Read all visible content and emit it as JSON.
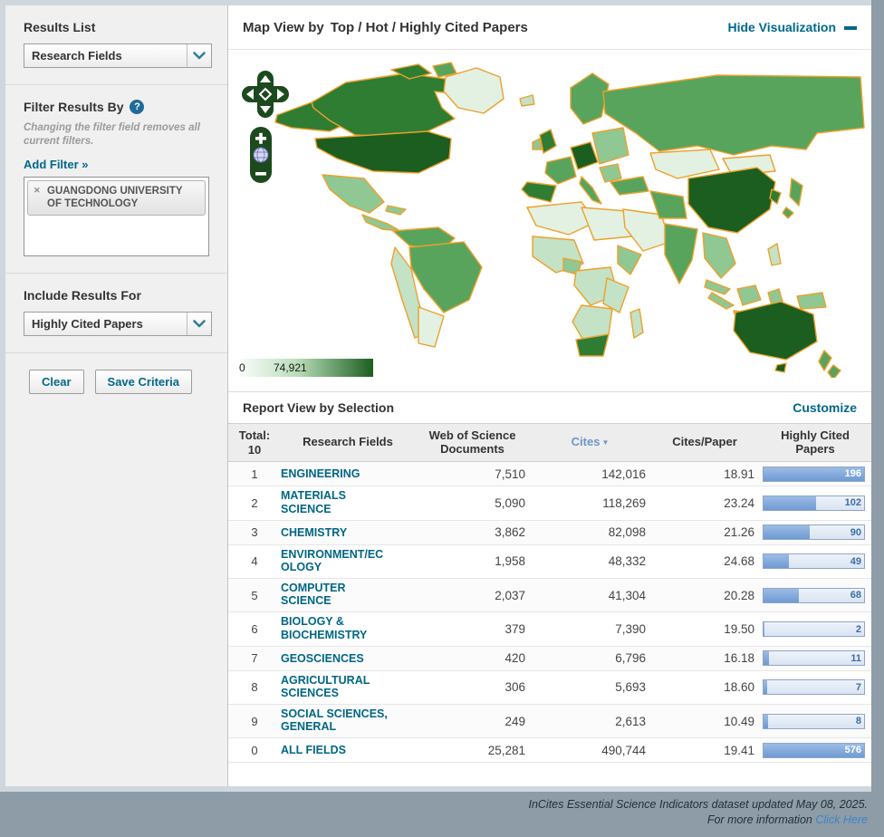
{
  "sidebar": {
    "results_list": {
      "label": "Results List",
      "selected": "Research Fields"
    },
    "filter": {
      "label": "Filter Results By",
      "help_glyph": "?",
      "note": "Changing the filter field removes all current filters.",
      "add_filter": "Add Filter »",
      "tag": {
        "remove_glyph": "✕",
        "label": "GUANGDONG UNIVERSITY OF TECHNOLOGY"
      }
    },
    "include_results": {
      "label": "Include Results For",
      "selected": "Highly Cited Papers"
    },
    "actions": {
      "clear": "Clear",
      "save": "Save Criteria"
    }
  },
  "map": {
    "title_prefix": "Map View by",
    "title": "Top / Hot / Highly Cited Papers",
    "hide_link": "Hide Visualization",
    "legend": {
      "min": "0",
      "max": "74,921"
    },
    "palette": {
      "min_color": "#ffffff",
      "max_color": "#1b5e20",
      "country_border": "#eda12b"
    }
  },
  "report": {
    "title": "Report View by Selection",
    "customize_link": "Customize",
    "table": {
      "total_label": "Total:",
      "total_value": "10",
      "headers": {
        "research_fields": "Research Fields",
        "documents": "Web of Science Documents",
        "cites": "Cites",
        "cites_per_paper": "Cites/Paper",
        "highly_cited_papers": "Highly Cited Papers"
      },
      "sorted_by": "Cites",
      "sort_glyph": "▼",
      "bar_scale_max": 196,
      "rows": [
        {
          "rank": "1",
          "field": "ENGINEERING",
          "documents": "7,510",
          "cites": "142,016",
          "cites_per_paper": "18.91",
          "highly_cited": 196
        },
        {
          "rank": "2",
          "field": "MATERIALS SCIENCE",
          "documents": "5,090",
          "cites": "118,269",
          "cites_per_paper": "23.24",
          "highly_cited": 102
        },
        {
          "rank": "3",
          "field": "CHEMISTRY",
          "documents": "3,862",
          "cites": "82,098",
          "cites_per_paper": "21.26",
          "highly_cited": 90
        },
        {
          "rank": "4",
          "field": "ENVIRONMENT/ECOLOGY",
          "documents": "1,958",
          "cites": "48,332",
          "cites_per_paper": "24.68",
          "highly_cited": 49
        },
        {
          "rank": "5",
          "field": "COMPUTER SCIENCE",
          "documents": "2,037",
          "cites": "41,304",
          "cites_per_paper": "20.28",
          "highly_cited": 68
        },
        {
          "rank": "6",
          "field": "BIOLOGY & BIOCHEMISTRY",
          "documents": "379",
          "cites": "7,390",
          "cites_per_paper": "19.50",
          "highly_cited": 2
        },
        {
          "rank": "7",
          "field": "GEOSCIENCES",
          "documents": "420",
          "cites": "6,796",
          "cites_per_paper": "16.18",
          "highly_cited": 11
        },
        {
          "rank": "8",
          "field": "AGRICULTURAL SCIENCES",
          "documents": "306",
          "cites": "5,693",
          "cites_per_paper": "18.60",
          "highly_cited": 7
        },
        {
          "rank": "9",
          "field": "SOCIAL SCIENCES, GENERAL",
          "documents": "249",
          "cites": "2,613",
          "cites_per_paper": "10.49",
          "highly_cited": 8
        },
        {
          "rank": "0",
          "field": "ALL FIELDS",
          "documents": "25,281",
          "cites": "490,744",
          "cites_per_paper": "19.41",
          "highly_cited": 576
        }
      ]
    }
  },
  "footer": {
    "line1": "InCites Essential Science Indicators dataset updated May 08, 2025.",
    "line2": "For more information",
    "link": "Click Here"
  }
}
